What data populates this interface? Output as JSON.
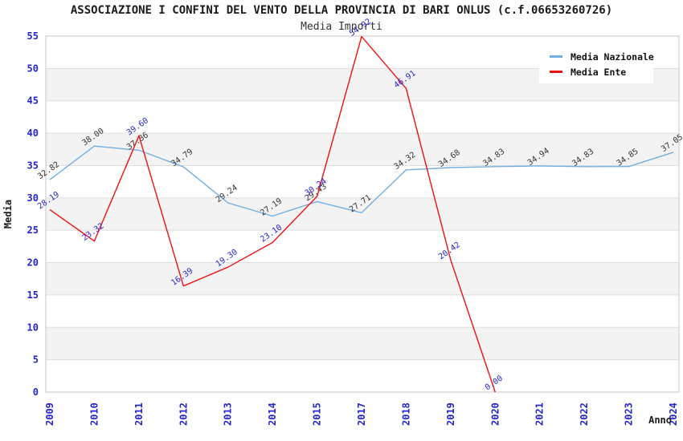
{
  "header": {
    "title": "ASSOCIAZIONE I CONFINI DEL VENTO DELLA PROVINCIA DI BARI ONLUS (c.f.06653260726)",
    "subtitle": "Media Importi"
  },
  "legend": {
    "items": [
      {
        "label": "Media Nazionale",
        "color": "#72aee0"
      },
      {
        "label": "Media Ente",
        "color": "#ee1111"
      }
    ]
  },
  "chart_data": {
    "type": "line",
    "title": "ASSOCIAZIONE I CONFINI DEL VENTO DELLA PROVINCIA DI BARI ONLUS (c.f.06653260726)",
    "subtitle": "Media Importi",
    "xlabel": "Anno",
    "ylabel": "Media",
    "ylim": [
      0,
      55
    ],
    "ytick_step": 5,
    "grid": "horizontal-gridlines-with-alternating-bands",
    "legend_position": "top-right",
    "categories": [
      "2009",
      "2010",
      "2011",
      "2012",
      "2013",
      "2014",
      "2015",
      "2017",
      "2018",
      "2019",
      "2020",
      "2021",
      "2022",
      "2023",
      "2024"
    ],
    "series": [
      {
        "name": "Media Nazionale",
        "color": "#72aee0",
        "label_color": "#333333",
        "values": [
          32.82,
          38.0,
          37.36,
          34.79,
          29.24,
          27.19,
          29.43,
          27.71,
          34.32,
          34.68,
          34.83,
          34.94,
          34.83,
          34.85,
          37.05
        ]
      },
      {
        "name": "Media Ente",
        "color": "#ee1111",
        "label_color": "#2424cc",
        "values": [
          28.19,
          23.32,
          39.6,
          16.39,
          19.3,
          23.1,
          30.24,
          54.92,
          46.91,
          20.42,
          0.0,
          null,
          null,
          null,
          null
        ]
      }
    ],
    "colors": {
      "axis_tick": "#2424cc",
      "band": "#f3f3f3",
      "gridline": "#dedede",
      "plot_border": "#c6c6c6"
    }
  }
}
